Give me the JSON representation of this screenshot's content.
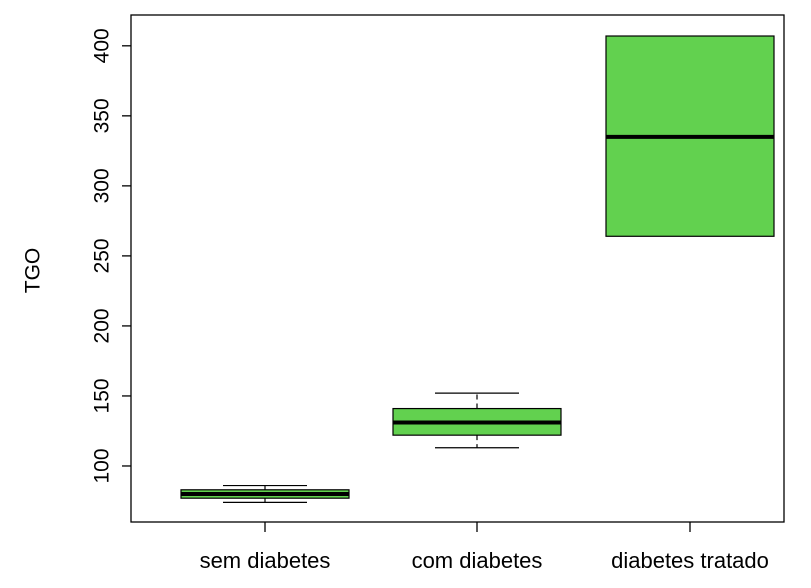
{
  "chart_data": {
    "type": "boxplot",
    "title": "",
    "xlabel": "",
    "ylabel": "TGO",
    "ylim": [
      60,
      422
    ],
    "y_ticks": [
      100,
      150,
      200,
      250,
      300,
      350,
      400
    ],
    "grid": false,
    "legend": "none",
    "box_fill": "#62D14F",
    "stroke": "#000000",
    "categories": [
      "sem diabetes",
      "com diabetes",
      "diabetes tratado"
    ],
    "boxes": [
      {
        "category": "sem diabetes",
        "whisker_low": 74,
        "q1": 77,
        "median": 80,
        "q3": 83,
        "whisker_high": 86
      },
      {
        "category": "com diabetes",
        "whisker_low": 113,
        "q1": 122,
        "median": 131,
        "q3": 141,
        "whisker_high": 152
      },
      {
        "category": "diabetes tratado",
        "whisker_low": 264,
        "q1": 264,
        "median": 335,
        "q3": 407,
        "whisker_high": 407
      }
    ]
  }
}
